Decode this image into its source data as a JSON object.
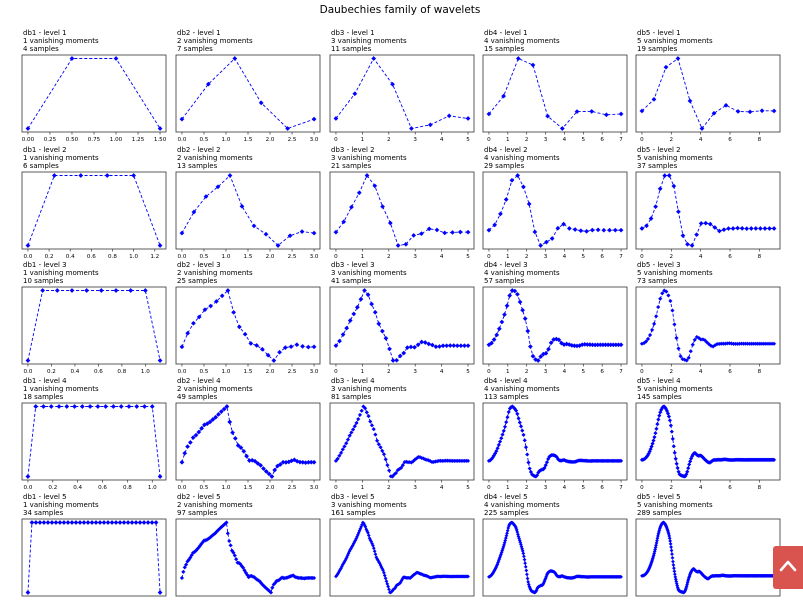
{
  "figure_title": "Daubechies family of wavelets",
  "scroll_top_button": {
    "icon": "chevron-up-icon",
    "color": "#d9534f"
  },
  "colors": {
    "series": "#0000ff",
    "axes": "#333333",
    "text": "#000000"
  },
  "chart_data": [
    {
      "id": "db1-l1",
      "type": "line",
      "title": "db1 - level 1",
      "subtitle": "1 vanishing moments",
      "samples_label": "4 samples",
      "samples": 4,
      "xmax": 1.5,
      "xticks": [
        0,
        0.25,
        0.5,
        0.75,
        1,
        1.25,
        1.5
      ],
      "xtick_labels": [
        "0.00",
        "0.25",
        "0.50",
        "0.75",
        "1.00",
        "1.25",
        "1.50"
      ]
    },
    {
      "id": "db2-l1",
      "type": "line",
      "title": "db2 - level 1",
      "subtitle": "2 vanishing moments",
      "samples_label": "7 samples",
      "samples": 7,
      "xmax": 3,
      "xticks": [
        0,
        0.5,
        1,
        1.5,
        2,
        2.5,
        3
      ],
      "xtick_labels": [
        "0.0",
        "0.5",
        "1.0",
        "1.5",
        "2.0",
        "2.5",
        "3.0"
      ]
    },
    {
      "id": "db3-l1",
      "type": "line",
      "title": "db3 - level 1",
      "subtitle": "3 vanishing moments",
      "samples_label": "11 samples",
      "samples": 11,
      "xmax": 5,
      "xticks": [
        0,
        1,
        2,
        3,
        4,
        5
      ],
      "xtick_labels": [
        "0",
        "1",
        "2",
        "3",
        "4",
        "5"
      ]
    },
    {
      "id": "db4-l1",
      "type": "line",
      "title": "db4 - level 1",
      "subtitle": "4 vanishing moments",
      "samples_label": "15 samples",
      "samples": 15,
      "xmax": 7,
      "xticks": [
        0,
        1,
        2,
        3,
        4,
        5,
        6,
        7
      ],
      "xtick_labels": [
        "0",
        "1",
        "2",
        "3",
        "4",
        "5",
        "6",
        "7"
      ]
    },
    {
      "id": "db5-l1",
      "type": "line",
      "title": "db5 - level 1",
      "subtitle": "5 vanishing moments",
      "samples_label": "19 samples",
      "samples": 19,
      "xmax": 9,
      "xticks": [
        0,
        2,
        4,
        6,
        8
      ],
      "xtick_labels": [
        "0",
        "2",
        "4",
        "6",
        "8"
      ]
    },
    {
      "id": "db1-l2",
      "type": "line",
      "title": "db1 - level 2",
      "subtitle": "1 vanishing moments",
      "samples_label": "6 samples",
      "samples": 6,
      "xmax": 1.25,
      "xticks": [
        0,
        0.2,
        0.4,
        0.6,
        0.8,
        1,
        1.2
      ],
      "xtick_labels": [
        "0.0",
        "0.2",
        "0.4",
        "0.6",
        "0.8",
        "1.0",
        "1.2"
      ]
    },
    {
      "id": "db2-l2",
      "type": "line",
      "title": "db2 - level 2",
      "subtitle": "2 vanishing moments",
      "samples_label": "13 samples",
      "samples": 13,
      "xmax": 3,
      "xticks": [
        0,
        0.5,
        1,
        1.5,
        2,
        2.5,
        3
      ],
      "xtick_labels": [
        "0.0",
        "0.5",
        "1.0",
        "1.5",
        "2.0",
        "2.5",
        "3.0"
      ]
    },
    {
      "id": "db3-l2",
      "type": "line",
      "title": "db3 - level 2",
      "subtitle": "3 vanishing moments",
      "samples_label": "21 samples",
      "samples": 21,
      "xmax": 5,
      "xticks": [
        0,
        1,
        2,
        3,
        4,
        5
      ],
      "xtick_labels": [
        "0",
        "1",
        "2",
        "3",
        "4",
        "5"
      ]
    },
    {
      "id": "db4-l2",
      "type": "line",
      "title": "db4 - level 2",
      "subtitle": "4 vanishing moments",
      "samples_label": "29 samples",
      "samples": 29,
      "xmax": 7,
      "xticks": [
        0,
        1,
        2,
        3,
        4,
        5,
        6,
        7
      ],
      "xtick_labels": [
        "0",
        "1",
        "2",
        "3",
        "4",
        "5",
        "6",
        "7"
      ]
    },
    {
      "id": "db5-l2",
      "type": "line",
      "title": "db5 - level 2",
      "subtitle": "5 vanishing moments",
      "samples_label": "37 samples",
      "samples": 37,
      "xmax": 9,
      "xticks": [
        0,
        2,
        4,
        6,
        8
      ],
      "xtick_labels": [
        "0",
        "2",
        "4",
        "6",
        "8"
      ]
    },
    {
      "id": "db1-l3",
      "type": "line",
      "title": "db1 - level 3",
      "subtitle": "1 vanishing moments",
      "samples_label": "10 samples",
      "samples": 10,
      "xmax": 1.125,
      "xticks": [
        0,
        0.2,
        0.4,
        0.6,
        0.8,
        1
      ],
      "xtick_labels": [
        "0.0",
        "0.2",
        "0.4",
        "0.6",
        "0.8",
        "1.0"
      ]
    },
    {
      "id": "db2-l3",
      "type": "line",
      "title": "db2 - level 3",
      "subtitle": "2 vanishing moments",
      "samples_label": "25 samples",
      "samples": 25,
      "xmax": 3,
      "xticks": [
        0,
        0.5,
        1,
        1.5,
        2,
        2.5,
        3
      ],
      "xtick_labels": [
        "0.0",
        "0.5",
        "1.0",
        "1.5",
        "2.0",
        "2.5",
        "3.0"
      ]
    },
    {
      "id": "db3-l3",
      "type": "line",
      "title": "db3 - level 3",
      "subtitle": "3 vanishing moments",
      "samples_label": "41 samples",
      "samples": 41,
      "xmax": 5,
      "xticks": [
        0,
        1,
        2,
        3,
        4,
        5
      ],
      "xtick_labels": [
        "0",
        "1",
        "2",
        "3",
        "4",
        "5"
      ]
    },
    {
      "id": "db4-l3",
      "type": "line",
      "title": "db4 - level 3",
      "subtitle": "4 vanishing moments",
      "samples_label": "57 samples",
      "samples": 57,
      "xmax": 7,
      "xticks": [
        0,
        1,
        2,
        3,
        4,
        5,
        6,
        7
      ],
      "xtick_labels": [
        "0",
        "1",
        "2",
        "3",
        "4",
        "5",
        "6",
        "7"
      ]
    },
    {
      "id": "db5-l3",
      "type": "line",
      "title": "db5 - level 3",
      "subtitle": "5 vanishing moments",
      "samples_label": "73 samples",
      "samples": 73,
      "xmax": 9,
      "xticks": [
        0,
        2,
        4,
        6,
        8
      ],
      "xtick_labels": [
        "0",
        "2",
        "4",
        "6",
        "8"
      ]
    },
    {
      "id": "db1-l4",
      "type": "line",
      "title": "db1 - level 4",
      "subtitle": "1 vanishing moments",
      "samples_label": "18 samples",
      "samples": 18,
      "xmax": 1.0625,
      "xticks": [
        0,
        0.2,
        0.4,
        0.6,
        0.8,
        1
      ],
      "xtick_labels": [
        "0.0",
        "0.2",
        "0.4",
        "0.6",
        "0.8",
        "1.0"
      ]
    },
    {
      "id": "db2-l4",
      "type": "line",
      "title": "db2 - level 4",
      "subtitle": "2 vanishing moments",
      "samples_label": "49 samples",
      "samples": 49,
      "xmax": 3,
      "xticks": [
        0,
        0.5,
        1,
        1.5,
        2,
        2.5,
        3
      ],
      "xtick_labels": [
        "0.0",
        "0.5",
        "1.0",
        "1.5",
        "2.0",
        "2.5",
        "3.0"
      ]
    },
    {
      "id": "db3-l4",
      "type": "line",
      "title": "db3 - level 4",
      "subtitle": "3 vanishing moments",
      "samples_label": "81 samples",
      "samples": 81,
      "xmax": 5,
      "xticks": [
        0,
        1,
        2,
        3,
        4,
        5
      ],
      "xtick_labels": [
        "0",
        "1",
        "2",
        "3",
        "4",
        "5"
      ]
    },
    {
      "id": "db4-l4",
      "type": "line",
      "title": "db4 - level 4",
      "subtitle": "4 vanishing moments",
      "samples_label": "113 samples",
      "samples": 113,
      "xmax": 7,
      "xticks": [
        0,
        1,
        2,
        3,
        4,
        5,
        6,
        7
      ],
      "xtick_labels": [
        "0",
        "1",
        "2",
        "3",
        "4",
        "5",
        "6",
        "7"
      ]
    },
    {
      "id": "db5-l4",
      "type": "line",
      "title": "db5 - level 4",
      "subtitle": "5 vanishing moments",
      "samples_label": "145 samples",
      "samples": 145,
      "xmax": 9,
      "xticks": [
        0,
        2,
        4,
        6,
        8
      ],
      "xtick_labels": [
        "0",
        "2",
        "4",
        "6",
        "8"
      ]
    },
    {
      "id": "db1-l5",
      "type": "line",
      "title": "db1 - level 5",
      "subtitle": "1 vanishing moments",
      "samples_label": "34 samples",
      "samples": 34,
      "xmax": 1.03125,
      "xticks": [],
      "xtick_labels": []
    },
    {
      "id": "db2-l5",
      "type": "line",
      "title": "db2 - level 5",
      "subtitle": "2 vanishing moments",
      "samples_label": "97 samples",
      "samples": 97,
      "xmax": 3,
      "xticks": [],
      "xtick_labels": []
    },
    {
      "id": "db3-l5",
      "type": "line",
      "title": "db3 - level 5",
      "subtitle": "3 vanishing moments",
      "samples_label": "161 samples",
      "samples": 161,
      "xmax": 5,
      "xticks": [],
      "xtick_labels": []
    },
    {
      "id": "db4-l5",
      "type": "line",
      "title": "db4 - level 5",
      "subtitle": "4 vanishing moments",
      "samples_label": "225 samples",
      "samples": 225,
      "xmax": 7,
      "xticks": [],
      "xtick_labels": []
    },
    {
      "id": "db5-l5",
      "type": "line",
      "title": "db5 - level 5",
      "subtitle": "5 vanishing moments",
      "samples_label": "289 samples",
      "samples": 289,
      "xmax": 9,
      "xticks": [],
      "xtick_labels": []
    }
  ]
}
